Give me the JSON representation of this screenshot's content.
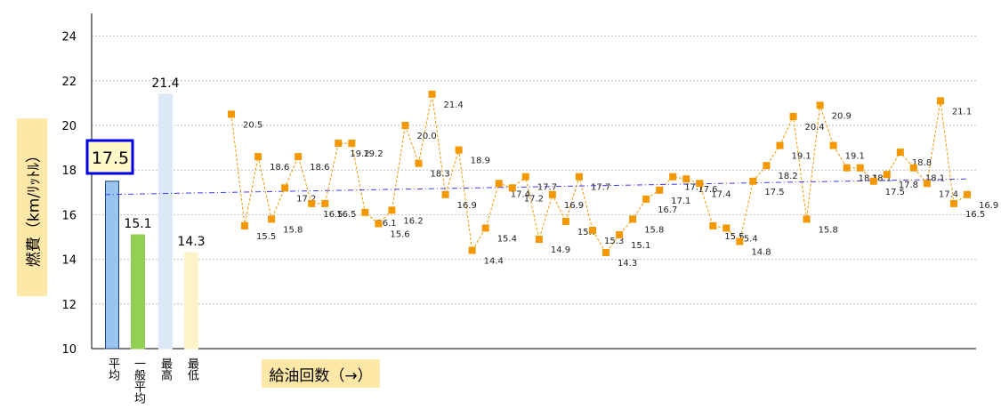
{
  "chart_data": {
    "type": "bar+line",
    "ylabel": "燃費（km/ﾘｯﾄﾙ）",
    "xlabel": "給油回数（→）",
    "ylim": [
      10,
      24
    ],
    "yticks": [
      "10",
      "12",
      "14",
      "16",
      "18",
      "20",
      "22",
      "24"
    ],
    "grid": true,
    "summary_bars": [
      {
        "label": "平均",
        "value": 17.5,
        "value_label": "17.5",
        "color": "#99c4ee",
        "edge": "#1f3f7a",
        "highlight": true
      },
      {
        "label": "一般平均",
        "value": 15.1,
        "value_label": "15.1",
        "color": "#92cf52",
        "edge": "#92cf52",
        "highlight": false
      },
      {
        "label": "最高",
        "value": 21.4,
        "value_label": "21.4",
        "color": "#dce8f5",
        "edge": "#dce8f5",
        "highlight": false
      },
      {
        "label": "最低",
        "value": 14.3,
        "value_label": "14.3",
        "color": "#fdf2c8",
        "edge": "#fdf2c8",
        "highlight": false
      }
    ],
    "series": [
      {
        "values": [
          20.5,
          15.5,
          18.6,
          15.8,
          17.2,
          18.6,
          16.5,
          16.5,
          19.2,
          19.2,
          16.1,
          15.6,
          16.2,
          20.0,
          18.3,
          21.4,
          16.9,
          18.9,
          14.4,
          15.4,
          17.4,
          17.2,
          17.7,
          14.9,
          16.9,
          15.7,
          17.7,
          15.3,
          14.3,
          15.1,
          15.8,
          16.7,
          17.1,
          17.7,
          17.6,
          17.4,
          15.5,
          15.4,
          14.8,
          17.5,
          18.2,
          19.1,
          20.4,
          15.8,
          20.9,
          19.1,
          18.1,
          18.1,
          17.5,
          17.8,
          18.8,
          18.1,
          17.4,
          21.1,
          16.5,
          16.9
        ],
        "labels": [
          "20.5",
          "15.5",
          "18.6",
          "15.8",
          "17.2",
          "18.6",
          "16.5",
          "16.5",
          "19.2",
          "19.2",
          "16.1",
          "15.6",
          "16.2",
          "20.0",
          "18.3",
          "21.4",
          "16.9",
          "18.9",
          "14.4",
          "15.4",
          "17.4",
          "17.2",
          "17.7",
          "14.9",
          "16.9",
          "15.7",
          "17.7",
          "15.3",
          "14.3",
          "15.1",
          "15.8",
          "16.7",
          "17.1",
          "17.7",
          "17.6",
          "17.4",
          "15.5",
          "15.4",
          "14.8",
          "17.5",
          "18.2",
          "19.1",
          "20.4",
          "15.8",
          "20.9",
          "19.1",
          "18.1",
          "18.1",
          "17.5",
          "17.8",
          "18.8",
          "18.1",
          "17.4",
          "21.1",
          "16.5",
          "16.9"
        ],
        "color": "#f39800"
      }
    ],
    "trend": {
      "start": 16.9,
      "end": 17.6,
      "color": "#3a3aff"
    }
  }
}
